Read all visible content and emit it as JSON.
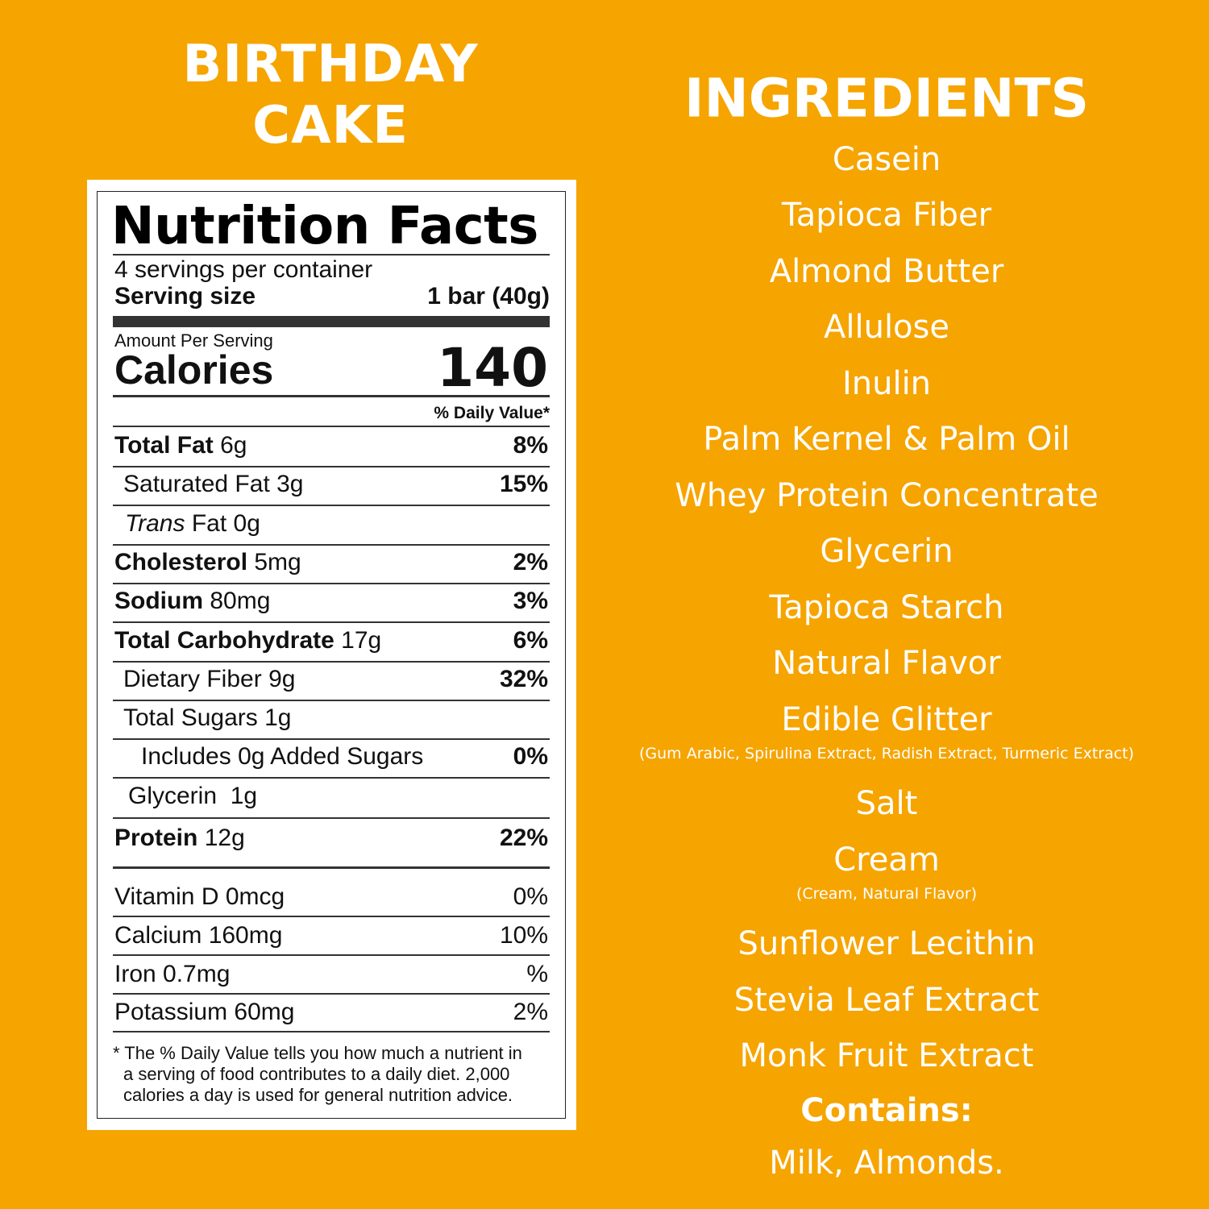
{
  "title": {
    "line1": "BIRTHDAY",
    "line2": "CAKE"
  },
  "nutrition": {
    "heading": "Nutrition Facts",
    "servings": "4 servings per container",
    "serving_size_label": "Serving size",
    "serving_size": "1 bar (40g)",
    "amount_per_serving": "Amount Per Serving",
    "calories_label": "Calories",
    "calories": "140",
    "dv_header": "% Daily Value*",
    "rows": [
      {
        "label": "Total Fat",
        "amount": "6g",
        "dv": "8%"
      },
      {
        "label": "Saturated Fat",
        "amount": "3g",
        "dv": "15%"
      },
      {
        "italic": "Trans",
        "label": "Fat",
        "amount": "0g"
      },
      {
        "label": "Cholesterol",
        "amount": "5mg",
        "dv": "2%"
      },
      {
        "label": "Sodium",
        "amount": "80mg",
        "dv": "3%"
      },
      {
        "label": "Total Carbohydrate",
        "amount": "17g",
        "dv": "6%"
      },
      {
        "label": "Dietary Fiber",
        "amount": "9g",
        "dv": "32%"
      },
      {
        "label": "Total Sugars",
        "amount": "1g"
      },
      {
        "label": "Includes 0g Added Sugars",
        "dv": "0%"
      },
      {
        "label": "Glycerin",
        "amount": "1g"
      },
      {
        "label": "Protein",
        "amount": "12g",
        "dv": "22%"
      }
    ],
    "vitamins": [
      {
        "label": "Vitamin D 0mcg",
        "dv": "0%"
      },
      {
        "label": "Calcium 160mg",
        "dv": "10%"
      },
      {
        "label": "Iron 0.7mg",
        "dv": "%"
      },
      {
        "label": "Potassium 60mg",
        "dv": "2%"
      }
    ],
    "footnote": [
      "* The % Daily Value tells you how much a nutrient in",
      "a serving of food contributes to a daily diet. 2,000",
      "calories a day is used for general nutrition advice."
    ]
  },
  "ingredients": {
    "heading": "INGREDIENTS",
    "items": [
      {
        "name": "Casein"
      },
      {
        "name": "Tapioca Fiber"
      },
      {
        "name": "Almond Butter"
      },
      {
        "name": "Allulose"
      },
      {
        "name": "Inulin"
      },
      {
        "name": "Palm Kernel & Palm Oil"
      },
      {
        "name": "Whey Protein Concentrate"
      },
      {
        "name": "Glycerin"
      },
      {
        "name": "Tapioca Starch"
      },
      {
        "name": "Natural Flavor"
      },
      {
        "name": "Edible Glitter",
        "note": "(Gum Arabic, Spirulina Extract, Radish Extract, Turmeric Extract)"
      },
      {
        "name": "Salt"
      },
      {
        "name": "Cream",
        "note": "(Cream, Natural Flavor)"
      },
      {
        "name": "Sunflower Lecithin"
      },
      {
        "name": "Stevia Leaf Extract"
      },
      {
        "name": "Monk Fruit Extract"
      }
    ],
    "contains_label": "Contains:",
    "contains": "Milk, Almonds."
  }
}
